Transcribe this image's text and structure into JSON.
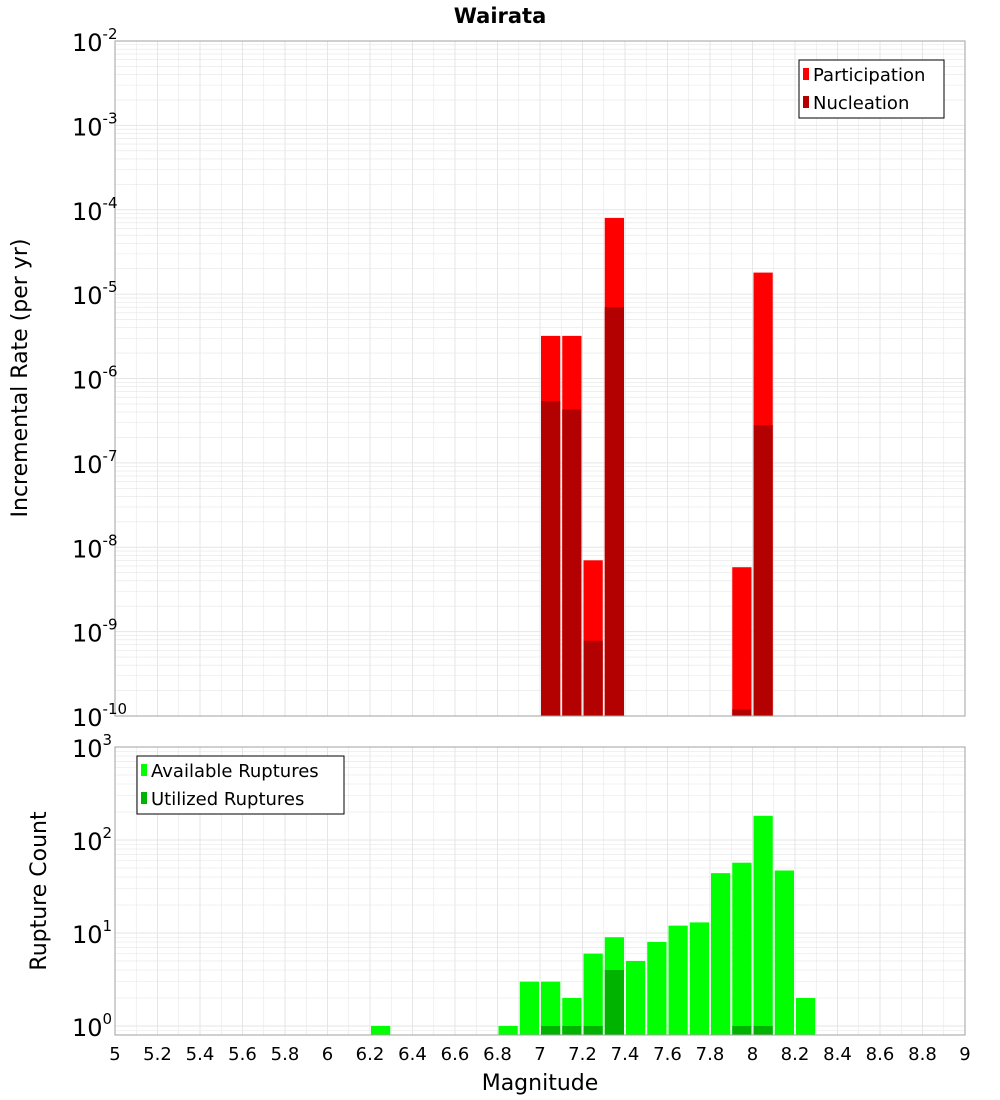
{
  "chart_data": [
    {
      "id": "rate",
      "type": "bar",
      "title": "Wairata",
      "xlabel": "",
      "ylabel": "Incremental Rate (per yr)",
      "xlim": [
        5,
        9
      ],
      "ylim": [
        1e-10,
        0.01
      ],
      "y_scale": "log",
      "grid": true,
      "legend_position": "top-right",
      "bar_width": 0.1,
      "series": [
        {
          "name": "Participation",
          "color": "#ff0000",
          "x": [
            7.05,
            7.15,
            7.25,
            7.35,
            7.95,
            8.05
          ],
          "values": [
            3.2e-06,
            3.2e-06,
            7e-09,
            8e-05,
            5.8e-09,
            1.8e-05
          ]
        },
        {
          "name": "Nucleation",
          "color": "#b30000",
          "x": [
            7.05,
            7.15,
            7.25,
            7.35,
            7.95,
            8.05
          ],
          "values": [
            5.4e-07,
            4.3e-07,
            7.8e-10,
            7e-06,
            1.2e-10,
            2.8e-07
          ]
        }
      ]
    },
    {
      "id": "count",
      "type": "bar",
      "title": "",
      "xlabel": "Magnitude",
      "ylabel": "Rupture Count",
      "xlim": [
        5,
        9
      ],
      "ylim": [
        0.8,
        1000
      ],
      "y_scale": "log",
      "grid": true,
      "legend_position": "top-left",
      "bar_width": 0.1,
      "series": [
        {
          "name": "Available Ruptures",
          "color": "#00ff00",
          "x": [
            6.25,
            6.85,
            6.95,
            7.05,
            7.15,
            7.25,
            7.35,
            7.45,
            7.55,
            7.65,
            7.75,
            7.85,
            7.95,
            8.05,
            8.15,
            8.25
          ],
          "values": [
            1,
            1,
            3,
            3,
            2,
            6,
            9,
            5,
            8,
            12,
            13,
            44,
            57,
            182,
            47,
            2
          ]
        },
        {
          "name": "Utilized Ruptures",
          "color": "#00b300",
          "x": [
            7.05,
            7.15,
            7.25,
            7.35,
            7.95,
            8.05
          ],
          "values": [
            1,
            1,
            1,
            4,
            1,
            1
          ]
        }
      ]
    }
  ],
  "axes": {
    "rate_y_ticks": [
      {
        "base": "10",
        "exp": "-10",
        "value": 1e-10
      },
      {
        "base": "10",
        "exp": "-9",
        "value": 1e-09
      },
      {
        "base": "10",
        "exp": "-8",
        "value": 1e-08
      },
      {
        "base": "10",
        "exp": "-7",
        "value": 1e-07
      },
      {
        "base": "10",
        "exp": "-6",
        "value": 1e-06
      },
      {
        "base": "10",
        "exp": "-5",
        "value": 1e-05
      },
      {
        "base": "10",
        "exp": "-4",
        "value": 0.0001
      },
      {
        "base": "10",
        "exp": "-3",
        "value": 0.001
      },
      {
        "base": "10",
        "exp": "-2",
        "value": 0.01
      }
    ],
    "count_y_ticks": [
      {
        "base": "10",
        "exp": "0",
        "value": 1
      },
      {
        "base": "10",
        "exp": "1",
        "value": 10
      },
      {
        "base": "10",
        "exp": "2",
        "value": 100
      },
      {
        "base": "10",
        "exp": "3",
        "value": 1000
      }
    ],
    "x_ticks": [
      "5",
      "5.2",
      "5.4",
      "5.6",
      "5.8",
      "6",
      "6.2",
      "6.4",
      "6.6",
      "6.8",
      "7",
      "7.2",
      "7.4",
      "7.6",
      "7.8",
      "8",
      "8.2",
      "8.4",
      "8.6",
      "8.8",
      "9"
    ]
  },
  "colors": {
    "plot_border": "#a0a0a0",
    "grid": "#e6e6e6",
    "background": "#ffffff"
  }
}
